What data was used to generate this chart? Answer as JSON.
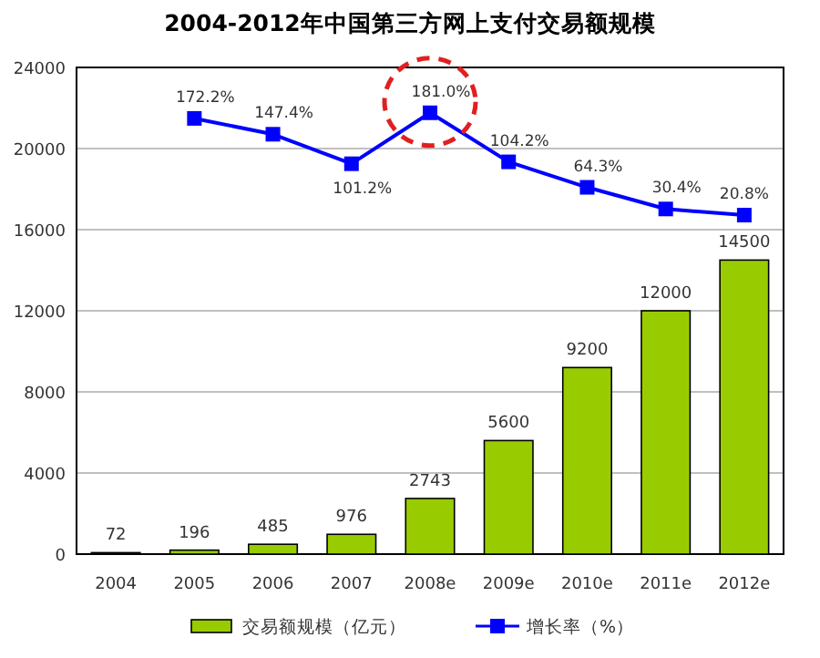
{
  "chart_data": {
    "type": "bar",
    "title": "2004-2012年中国第三方网上支付交易额规模",
    "categories": [
      "2004",
      "2005",
      "2006",
      "2007",
      "2008e",
      "2009e",
      "2010e",
      "2011e",
      "2012e"
    ],
    "series": [
      {
        "name": "交易额规模（亿元）",
        "color": "#99cc00",
        "values": [
          72,
          196,
          485,
          976,
          2743,
          5600,
          9200,
          12000,
          14500
        ],
        "value_labels": [
          "72",
          "196",
          "485",
          "976",
          "2743",
          "5600",
          "9200",
          "12000",
          "14500"
        ]
      },
      {
        "name": "增长率（%）",
        "type": "line",
        "axis": "y2",
        "color": "#0000ff",
        "marker": "square",
        "values": [
          null,
          172.2,
          147.4,
          101.2,
          181.0,
          104.2,
          64.3,
          30.4,
          20.8
        ],
        "value_labels": [
          null,
          "172.2%",
          "147.4%",
          "101.2%",
          "181.0%",
          "104.2%",
          "64.3%",
          "30.4%",
          "20.8%"
        ]
      }
    ],
    "ylim": [
      0,
      24000
    ],
    "yticks": [
      0,
      4000,
      8000,
      12000,
      16000,
      20000,
      24000
    ],
    "y2lim": [
      -510,
      252
    ],
    "grid": "y",
    "legend": "bottom"
  }
}
